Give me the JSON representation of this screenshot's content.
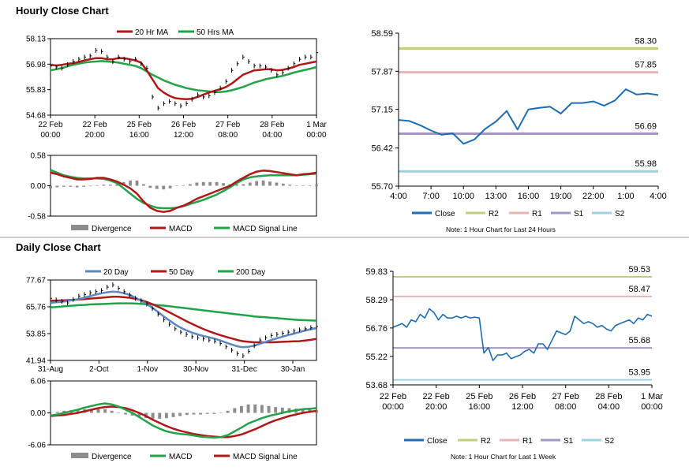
{
  "sections": {
    "hourly_title": "Hourly Close Chart",
    "daily_title": "Daily Close Chart"
  },
  "colors": {
    "ma20": "#b01818",
    "ma50": "#21a34a",
    "close_blue": "#1f6db0",
    "r2": "#bcd17f",
    "r1": "#e8b4b4",
    "s1": "#a694c2",
    "s2": "#9fd3dc",
    "divergence": "#8c8c8c",
    "day20": "#5b87c2",
    "day50": "#b01818",
    "day200": "#21a34a",
    "separator": "#999999"
  },
  "chart_data": [
    {
      "id": "hourly_price",
      "type": "line",
      "title": "Hourly Close Chart",
      "legend": [
        "20 Hr MA",
        "50 Hrs MA"
      ],
      "ylim": [
        54.68,
        58.13
      ],
      "yticks": [
        "58.13",
        "56.98",
        "55.83",
        "54.68"
      ],
      "xticks": [
        "22 Feb\n00:00",
        "22 Feb\n20:00",
        "25 Feb\n16:00",
        "26 Feb\n12:00",
        "27 Feb\n08:00",
        "28 Feb\n04:00",
        "1 Mar\n00:00"
      ],
      "price": [
        56.9,
        56.85,
        56.8,
        56.95,
        57.1,
        57.2,
        57.3,
        57.35,
        57.6,
        57.55,
        57.3,
        57.1,
        57.3,
        57.2,
        57.1,
        57.2,
        57.0,
        56.8,
        55.5,
        55.0,
        55.2,
        55.3,
        55.2,
        55.1,
        55.2,
        55.4,
        55.6,
        55.5,
        55.55,
        55.7,
        55.9,
        56.2,
        56.7,
        57.0,
        57.3,
        57.1,
        56.9,
        56.9,
        56.85,
        56.7,
        56.5,
        56.6,
        56.8,
        57.0,
        57.2,
        57.3,
        57.3,
        57.5
      ],
      "ma20": [
        56.95,
        56.92,
        56.95,
        57.0,
        57.02,
        57.08,
        57.15,
        57.2,
        57.25,
        57.25,
        57.2,
        57.2,
        57.25,
        57.25,
        57.2,
        57.15,
        57.05,
        56.7,
        56.3,
        55.9,
        55.7,
        55.55,
        55.45,
        55.42,
        55.4,
        55.42,
        55.5,
        55.6,
        55.7,
        55.78,
        55.85,
        55.95,
        56.1,
        56.3,
        56.5,
        56.6,
        56.7,
        56.72,
        56.75,
        56.75,
        56.7,
        56.72,
        56.78,
        56.85,
        56.95,
        57.0,
        57.05,
        57.1
      ],
      "ma50": [
        56.7,
        56.75,
        56.8,
        56.88,
        56.95,
        57.0,
        57.05,
        57.08,
        57.1,
        57.12,
        57.1,
        57.08,
        57.05,
        57.0,
        56.95,
        56.9,
        56.8,
        56.65,
        56.5,
        56.38,
        56.25,
        56.15,
        56.05,
        55.98,
        55.9,
        55.85,
        55.8,
        55.78,
        55.75,
        55.72,
        55.72,
        55.75,
        55.8,
        55.87,
        55.95,
        56.05,
        56.15,
        56.22,
        56.3,
        56.35,
        56.4,
        56.45,
        56.52,
        56.6,
        56.66,
        56.72,
        56.78,
        56.85
      ]
    },
    {
      "id": "hourly_macd",
      "type": "line",
      "legend": [
        "Divergence",
        "MACD",
        "MACD Signal Line"
      ],
      "ylim": [
        -0.58,
        0.58
      ],
      "yticks": [
        "0.58",
        "0.00",
        "-0.58"
      ],
      "macd": [
        0.25,
        0.22,
        0.18,
        0.15,
        0.12,
        0.12,
        0.13,
        0.15,
        0.15,
        0.12,
        0.08,
        0.02,
        -0.05,
        -0.15,
        -0.3,
        -0.42,
        -0.48,
        -0.5,
        -0.48,
        -0.42,
        -0.38,
        -0.32,
        -0.25,
        -0.2,
        -0.15,
        -0.1,
        -0.05,
        0.0,
        0.08,
        0.15,
        0.22,
        0.27,
        0.29,
        0.28,
        0.26,
        0.24,
        0.22,
        0.2,
        0.22,
        0.23,
        0.25
      ],
      "signal": [
        0.3,
        0.25,
        0.2,
        0.17,
        0.15,
        0.14,
        0.14,
        0.14,
        0.13,
        0.1,
        0.05,
        -0.05,
        -0.15,
        -0.25,
        -0.33,
        -0.38,
        -0.42,
        -0.43,
        -0.43,
        -0.42,
        -0.39,
        -0.35,
        -0.31,
        -0.27,
        -0.22,
        -0.17,
        -0.1,
        -0.03,
        0.05,
        0.12,
        0.16,
        0.18,
        0.19,
        0.2,
        0.2,
        0.2,
        0.2,
        0.2,
        0.21,
        0.22,
        0.23
      ],
      "divergence": [
        -0.05,
        -0.03,
        -0.02,
        -0.02,
        -0.03,
        -0.02,
        -0.01,
        0.01,
        0.02,
        0.02,
        0.03,
        0.07,
        0.1,
        0.1,
        0.03,
        -0.04,
        -0.06,
        -0.07,
        -0.05,
        0.0,
        0.01,
        0.03,
        0.06,
        0.07,
        0.07,
        0.07,
        0.05,
        0.03,
        0.03,
        0.03,
        0.06,
        0.09,
        0.1,
        0.08,
        0.06,
        0.04,
        0.02,
        0.0,
        0.01,
        0.01,
        0.02
      ]
    },
    {
      "id": "hourly_24h",
      "type": "line",
      "ylim": [
        55.7,
        58.59
      ],
      "yticks": [
        "58.59",
        "57.87",
        "57.15",
        "56.42",
        "55.70"
      ],
      "xticks": [
        "4:00",
        "7:00",
        "10:00",
        "13:00",
        "16:00",
        "19:00",
        "22:00",
        "1:00",
        "4:00"
      ],
      "levels": {
        "R2": 58.3,
        "R1": 57.85,
        "S1": 56.69,
        "S2": 55.98
      },
      "level_labels": {
        "R2": "58.30",
        "R1": "57.85",
        "S1": "56.69",
        "S2": "55.98"
      },
      "close": [
        56.95,
        56.93,
        56.85,
        56.75,
        56.67,
        56.7,
        56.5,
        56.58,
        56.78,
        56.92,
        57.12,
        56.77,
        57.15,
        57.18,
        57.2,
        57.07,
        57.27,
        57.27,
        57.3,
        57.22,
        57.32,
        57.53,
        57.43,
        57.45,
        57.42
      ],
      "legend": [
        "Close",
        "R2",
        "R1",
        "S1",
        "S2"
      ],
      "note": "Note: 1 Hour Chart for Last 24 Hours"
    },
    {
      "id": "daily_price",
      "type": "line",
      "title": "Daily Close Chart",
      "legend": [
        "20 Day",
        "50 Day",
        "200 Day"
      ],
      "ylim": [
        41.94,
        77.67
      ],
      "yticks": [
        "77.67",
        "65.76",
        "53.85",
        "41.94"
      ],
      "xticks": [
        "31-Aug",
        "2-Oct",
        "1-Nov",
        "30-Nov",
        "31-Dec",
        "30-Jan"
      ],
      "price": [
        69.5,
        68.8,
        68.2,
        67.5,
        69.0,
        70.5,
        71.2,
        72.0,
        72.5,
        73.0,
        74.5,
        75.5,
        74.0,
        72.5,
        71.0,
        69.5,
        68.5,
        67.0,
        65.0,
        62.5,
        60.0,
        58.0,
        56.0,
        54.5,
        53.5,
        52.5,
        52.0,
        51.5,
        51.0,
        50.5,
        49.5,
        48.0,
        46.5,
        45.0,
        44.0,
        46.0,
        48.5,
        51.0,
        52.0,
        53.0,
        53.5,
        54.0,
        54.5,
        55.0,
        55.5,
        56.0,
        56.5,
        57.0
      ],
      "day20": [
        67.5,
        67.8,
        68.0,
        68.3,
        68.8,
        69.2,
        69.8,
        70.5,
        71.2,
        71.8,
        72.2,
        72.5,
        72.3,
        71.8,
        71.0,
        69.8,
        68.5,
        67.0,
        65.3,
        63.5,
        61.5,
        59.7,
        58.0,
        56.5,
        55.3,
        54.3,
        53.5,
        52.8,
        52.2,
        51.6,
        50.8,
        49.9,
        49.0,
        48.2,
        47.8,
        48.0,
        48.5,
        49.3,
        50.2,
        51.0,
        51.8,
        52.5,
        53.2,
        53.8,
        54.5,
        55.2,
        55.8,
        56.3
      ],
      "day50": [
        68.5,
        68.5,
        68.6,
        68.7,
        68.8,
        69.0,
        69.2,
        69.4,
        69.6,
        69.8,
        70.0,
        70.2,
        70.2,
        70.0,
        69.8,
        69.3,
        68.7,
        67.9,
        66.9,
        65.8,
        64.6,
        63.3,
        62.0,
        60.7,
        59.4,
        58.2,
        57.0,
        55.9,
        54.9,
        54.0,
        53.2,
        52.4,
        51.7,
        51.0,
        50.5,
        50.2,
        50.0,
        50.0,
        50.0,
        50.0,
        50.1,
        50.2,
        50.3,
        50.4,
        50.5,
        50.8,
        51.1,
        51.5
      ],
      "day200": [
        65.5,
        65.7,
        65.9,
        66.1,
        66.3,
        66.5,
        66.6,
        66.8,
        66.9,
        67.0,
        67.1,
        67.2,
        67.3,
        67.3,
        67.3,
        67.2,
        67.1,
        66.9,
        66.7,
        66.5,
        66.3,
        66.0,
        65.7,
        65.4,
        65.1,
        64.8,
        64.5,
        64.2,
        63.9,
        63.6,
        63.3,
        63.0,
        62.7,
        62.4,
        62.1,
        61.8,
        61.5,
        61.3,
        61.1,
        60.9,
        60.7,
        60.5,
        60.3,
        60.1,
        59.9,
        59.8,
        59.7,
        59.6
      ]
    },
    {
      "id": "daily_macd",
      "type": "line",
      "legend": [
        "Divergence",
        "MACD",
        "MACD Signal Line"
      ],
      "ylim": [
        -6.06,
        6.06
      ],
      "yticks": [
        "6.06",
        "0.00",
        "-6.06"
      ],
      "macd": [
        -0.5,
        -0.3,
        0.0,
        0.3,
        0.6,
        1.0,
        1.3,
        1.6,
        1.8,
        1.6,
        1.2,
        0.6,
        0.0,
        -0.8,
        -1.6,
        -2.4,
        -3.0,
        -3.5,
        -3.8,
        -4.0,
        -4.1,
        -4.3,
        -4.5,
        -4.6,
        -4.7,
        -4.6,
        -4.2,
        -3.5,
        -2.8,
        -2.0,
        -1.5,
        -1.0,
        -0.6,
        -0.3,
        0.0,
        0.3,
        0.5,
        0.7,
        0.8,
        0.9
      ],
      "signal": [
        -0.6,
        -0.5,
        -0.4,
        -0.2,
        0.0,
        0.3,
        0.6,
        0.9,
        1.1,
        1.2,
        1.1,
        0.9,
        0.5,
        0.0,
        -0.6,
        -1.3,
        -1.9,
        -2.5,
        -3.0,
        -3.4,
        -3.7,
        -4.0,
        -4.2,
        -4.4,
        -4.5,
        -4.6,
        -4.6,
        -4.4,
        -4.1,
        -3.6,
        -3.1,
        -2.5,
        -1.9,
        -1.4,
        -1.0,
        -0.6,
        -0.3,
        0.0,
        0.2,
        0.4
      ],
      "divergence": [
        0.1,
        0.2,
        0.4,
        0.5,
        0.6,
        0.7,
        0.7,
        0.7,
        0.7,
        0.4,
        0.1,
        -0.3,
        -0.5,
        -0.8,
        -1.0,
        -1.1,
        -1.1,
        -1.0,
        -0.8,
        -0.6,
        -0.4,
        -0.3,
        -0.3,
        -0.2,
        -0.2,
        0.0,
        0.4,
        0.9,
        1.3,
        1.6,
        1.6,
        1.5,
        1.3,
        1.1,
        1.0,
        0.9,
        0.8,
        0.7,
        0.6,
        0.5
      ]
    },
    {
      "id": "hourly_week",
      "type": "line",
      "ylim": [
        53.68,
        59.83
      ],
      "yticks": [
        "59.83",
        "58.29",
        "56.76",
        "55.22",
        "53.68"
      ],
      "xticks": [
        "22 Feb\n00:00",
        "22 Feb\n20:00",
        "25 Feb\n16:00",
        "26 Feb\n12:00",
        "27 Feb\n08:00",
        "28 Feb\n04:00",
        "1 Mar\n00:00"
      ],
      "levels": {
        "R2": 59.53,
        "R1": 58.47,
        "S1": 55.68,
        "S2": 53.95
      },
      "level_labels": {
        "R2": "59.53",
        "R1": "58.47",
        "S1": "55.68",
        "S2": "53.95"
      },
      "close": [
        56.8,
        56.9,
        57.0,
        56.8,
        57.2,
        57.1,
        57.5,
        57.3,
        57.8,
        57.6,
        57.2,
        57.5,
        57.3,
        57.3,
        57.4,
        57.3,
        57.4,
        57.3,
        57.35,
        57.3,
        55.4,
        55.7,
        55.0,
        55.3,
        55.3,
        55.4,
        55.1,
        55.2,
        55.3,
        55.5,
        55.6,
        55.4,
        55.9,
        55.9,
        55.6,
        56.1,
        56.6,
        56.5,
        56.4,
        56.6,
        57.4,
        57.2,
        57.0,
        57.1,
        57.0,
        56.8,
        56.9,
        56.7,
        56.6,
        56.9,
        57.0,
        57.1,
        57.2,
        57.0,
        57.3,
        57.2,
        57.5,
        57.4
      ],
      "legend": [
        "Close",
        "R2",
        "R1",
        "S1",
        "S2"
      ],
      "note": "Note: 1 Hour Chart for Last 1 Week"
    }
  ]
}
